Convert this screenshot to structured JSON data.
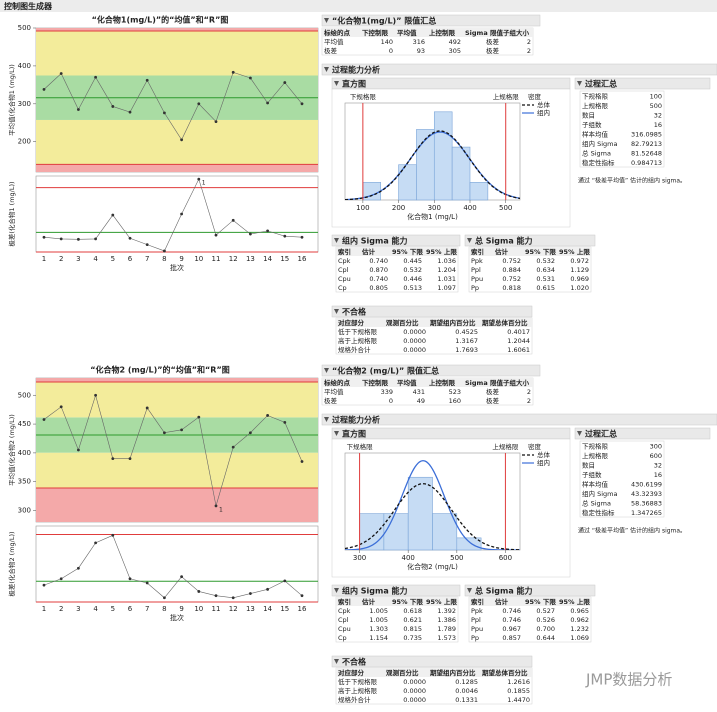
{
  "header": {
    "title": "控制图生成器"
  },
  "watermark": "JMP数据分析",
  "panels": [
    {
      "control_chart": {
        "type": "control",
        "title": "“化合物1(mg/L)”的“均值”和“R”图",
        "x_label": "批次",
        "categories": [
          1,
          2,
          3,
          4,
          5,
          6,
          7,
          8,
          9,
          10,
          11,
          12,
          13,
          14,
          15,
          16
        ],
        "test_flag": "1",
        "xbar": {
          "y_label": "平均值(化合物1 (mg/L))",
          "values": [
            338,
            380,
            285,
            370,
            293,
            278,
            362,
            276,
            205,
            300,
            253,
            383,
            368,
            302,
            356,
            300
          ],
          "ylim": [
            120,
            500
          ],
          "yticks": [
            200,
            300,
            400,
            500
          ]
        },
        "range": {
          "y_label": "极差(化合物1 (mg/L))",
          "values": [
            70,
            62,
            60,
            62,
            175,
            65,
            35,
            5,
            180,
            345,
            80,
            150,
            85,
            100,
            75,
            70
          ],
          "ylim": [
            0,
            360
          ]
        }
      },
      "limits_summary": {
        "title": "“化合物1(mg/L)” 限值汇总",
        "headers": [
          "标绘的点",
          "下控制限",
          "平均值",
          "上控制限",
          "Sigma 限值",
          "子组大小"
        ],
        "rows": [
          [
            "平均值",
            140,
            316,
            492,
            "极差",
            2
          ],
          [
            "极差",
            0,
            93,
            305,
            "极差",
            2
          ]
        ]
      },
      "capability": {
        "title": "过程能力分析",
        "histogram": {
          "type": "histogram",
          "title": "直方图",
          "x_label": "化合物1 (mg/L)",
          "bins": [
            100,
            150,
            200,
            250,
            300,
            350,
            400,
            450
          ],
          "counts": [
            2,
            0,
            4,
            8,
            10,
            6,
            2
          ],
          "xlim": [
            50,
            540
          ],
          "xticks": [
            100,
            200,
            300,
            400,
            500
          ],
          "ylim": [
            0,
            11
          ],
          "color": "#c6dcf4",
          "lsl_label": "下规格限",
          "usl_label": "上规格限",
          "legend_title": "密度",
          "legend": [
            "总体",
            "组内"
          ]
        },
        "summary": {
          "title": "过程汇总",
          "rows": [
            [
              "下规格限",
              100
            ],
            [
              "上规格限",
              500
            ],
            [
              "数目",
              32
            ],
            [
              "子组数",
              16
            ],
            [
              "样本均值",
              316.0985
            ],
            [
              "组内 Sigma",
              82.79213
            ],
            [
              "总 Sigma",
              81.52648
            ],
            [
              "稳定性指标",
              0.984713
            ]
          ],
          "note": "通过 “极差平均值” 估计的组内 sigma。"
        },
        "within": {
          "title": "组内 Sigma 能力",
          "headers": [
            "索引",
            "估计",
            "95% 下限",
            "95% 上限"
          ],
          "rows": [
            [
              "Cpk",
              "0.740",
              "0.445",
              "1.036"
            ],
            [
              "Cpl",
              "0.870",
              "0.532",
              "1.204"
            ],
            [
              "Cpu",
              "0.740",
              "0.446",
              "1.031"
            ],
            [
              "Cp",
              "0.805",
              "0.513",
              "1.097"
            ]
          ]
        },
        "overall": {
          "title": "总 Sigma 能力",
          "headers": [
            "索引",
            "估计",
            "95% 下限",
            "95% 上限"
          ],
          "rows": [
            [
              "Ppk",
              "0.752",
              "0.532",
              "0.972"
            ],
            [
              "Ppl",
              "0.884",
              "0.634",
              "1.129"
            ],
            [
              "Ppu",
              "0.752",
              "0.531",
              "0.969"
            ],
            [
              "Pp",
              "0.818",
              "0.615",
              "1.020"
            ]
          ]
        },
        "nonconformance": {
          "title": "不合格",
          "headers": [
            "对应部分",
            "观测百分比",
            "期望组内百分比",
            "期望总体百分比"
          ],
          "rows": [
            [
              "低于下规格限",
              "0.0000",
              "0.4525",
              "0.4017"
            ],
            [
              "高于上规格限",
              "0.0000",
              "1.3167",
              "1.2044"
            ],
            [
              "规格外合计",
              "0.0000",
              "1.7693",
              "1.6061"
            ]
          ]
        }
      }
    },
    {
      "control_chart": {
        "type": "control",
        "title": "“化合物2 (mg/L)”的“均值”和“R”图",
        "x_label": "批次",
        "categories": [
          1,
          2,
          3,
          4,
          5,
          6,
          7,
          8,
          9,
          10,
          11,
          12,
          13,
          14,
          15,
          16
        ],
        "test_flag": "1",
        "xbar": {
          "y_label": "平均值(化合物2 (mg/L))",
          "values": [
            458,
            480,
            405,
            500,
            390,
            390,
            478,
            435,
            440,
            462,
            308,
            410,
            435,
            465,
            453,
            385
          ],
          "ylim": [
            280,
            530
          ],
          "yticks": [
            300,
            350,
            400,
            450,
            500
          ]
        },
        "range": {
          "y_label": "极差(化合物2 (mg/L))",
          "values": [
            40,
            55,
            80,
            140,
            158,
            55,
            45,
            10,
            60,
            25,
            15,
            10,
            20,
            30,
            50,
            15
          ],
          "ylim": [
            0,
            180
          ]
        }
      },
      "limits_summary": {
        "title": "“化合物2 (mg/L)” 限值汇总",
        "headers": [
          "标绘的点",
          "下控制限",
          "平均值",
          "上控制限",
          "Sigma 限值",
          "子组大小"
        ],
        "rows": [
          [
            "平均值",
            339,
            431,
            523,
            "极差",
            2
          ],
          [
            "极差",
            0,
            49,
            160,
            "极差",
            2
          ]
        ]
      },
      "capability": {
        "title": "过程能力分析",
        "histogram": {
          "type": "histogram",
          "title": "直方图",
          "x_label": "化合物2 (mg/L)",
          "bins": [
            300,
            350,
            400,
            450,
            500,
            550
          ],
          "counts": [
            6,
            6,
            12,
            6,
            2
          ],
          "xlim": [
            270,
            630
          ],
          "xticks": [
            300,
            400,
            500,
            600
          ],
          "ylim": [
            0,
            16
          ],
          "color": "#c6dcf4",
          "lsl_label": "下规格限",
          "usl_label": "上规格限",
          "legend_title": "密度",
          "legend": [
            "总体",
            "组内"
          ]
        },
        "summary": {
          "title": "过程汇总",
          "rows": [
            [
              "下规格限",
              300
            ],
            [
              "上规格限",
              600
            ],
            [
              "数目",
              32
            ],
            [
              "子组数",
              16
            ],
            [
              "样本均值",
              430.6199
            ],
            [
              "组内 Sigma",
              43.32393
            ],
            [
              "总 Sigma",
              58.36883
            ],
            [
              "稳定性指标",
              1.347265
            ]
          ],
          "note": "通过 “极差平均值” 估计的组内 sigma。"
        },
        "within": {
          "title": "组内 Sigma 能力",
          "headers": [
            "索引",
            "估计",
            "95% 下限",
            "95% 上限"
          ],
          "rows": [
            [
              "Cpk",
              "1.005",
              "0.618",
              "1.392"
            ],
            [
              "Cpl",
              "1.005",
              "0.621",
              "1.386"
            ],
            [
              "Cpu",
              "1.303",
              "0.815",
              "1.789"
            ],
            [
              "Cp",
              "1.154",
              "0.735",
              "1.573"
            ]
          ]
        },
        "overall": {
          "title": "总 Sigma 能力",
          "headers": [
            "索引",
            "估计",
            "95% 下限",
            "95% 上限"
          ],
          "rows": [
            [
              "Ppk",
              "0.746",
              "0.527",
              "0.965"
            ],
            [
              "Ppl",
              "0.746",
              "0.526",
              "0.962"
            ],
            [
              "Ppu",
              "0.967",
              "0.700",
              "1.232"
            ],
            [
              "Pp",
              "0.857",
              "0.644",
              "1.069"
            ]
          ]
        },
        "nonconformance": {
          "title": "不合格",
          "headers": [
            "对应部分",
            "观测百分比",
            "期望组内百分比",
            "期望总体百分比"
          ],
          "rows": [
            [
              "低于下规格限",
              "0.0000",
              "0.1285",
              "1.2616"
            ],
            [
              "高于上规格限",
              "0.0000",
              "0.0046",
              "0.1855"
            ],
            [
              "规格外合计",
              "0.0000",
              "0.1331",
              "1.4470"
            ]
          ]
        }
      }
    }
  ]
}
